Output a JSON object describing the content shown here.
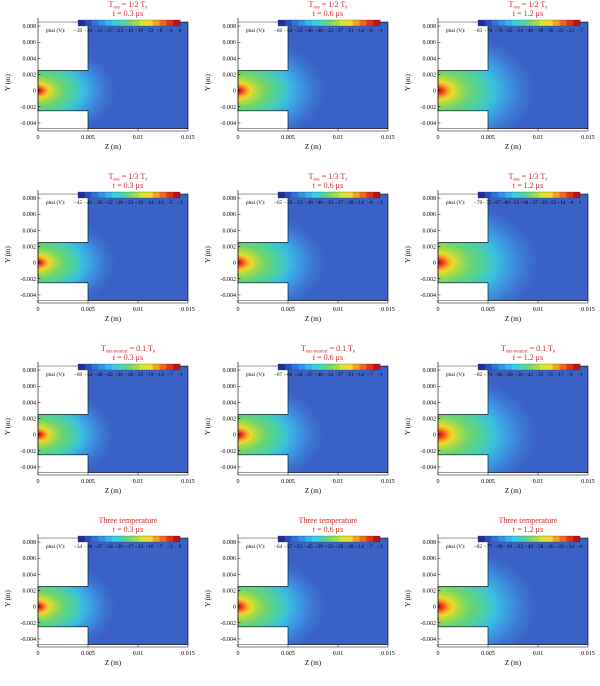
{
  "figure": {
    "x_tick_labels": [
      "0",
      "0.005",
      "0.01",
      "0.015"
    ],
    "y_tick_labels": [
      "0.008",
      "0.006",
      "0.004",
      "0.002",
      "0",
      "-0.002",
      "-0.004"
    ],
    "xlabel": "Z (m)",
    "ylabel": "Y (m)",
    "legend_label": "phai (V):",
    "colorbar_colors": [
      "#1d2f9c",
      "#2a4fc4",
      "#2e72dc",
      "#2f94ea",
      "#30b6f0",
      "#36cfe0",
      "#49d7b2",
      "#6fd67a",
      "#a3dc49",
      "#d4e530",
      "#f2d82a",
      "#f4a223",
      "#ec6a1e",
      "#de341b",
      "#b8141a"
    ],
    "domain_colors": {
      "background": "#3b62c6",
      "mid": "#41a9e3",
      "green": "#5fcf6a",
      "hot": "#e8241b"
    }
  },
  "chart_data": [
    {
      "type": "heatmap",
      "title": "T",
      "title_sub": "ees",
      "title_tail": " = 1/2 T",
      "title_sub2": "e",
      "time": "t = 0.3 μs",
      "colorbar_ticks": [
        "−39",
        "−35",
        "−31",
        "−27",
        "−23",
        "−19",
        "−16",
        "−12",
        "−8",
        "−4",
        "0"
      ],
      "field_extent": 0.0078
    },
    {
      "type": "heatmap",
      "title": "T",
      "title_sub": "ees",
      "title_tail": " = 1/2 T",
      "title_sub2": "e",
      "time": "t = 0.6 μs",
      "colorbar_ticks": [
        "−66",
        "−59",
        "−53",
        "−46",
        "−40",
        "−33",
        "−27",
        "−21",
        "−14",
        "−8",
        "−1"
      ],
      "field_extent": 0.0088
    },
    {
      "type": "heatmap",
      "title": "T",
      "title_sub": "ees",
      "title_tail": " = 1/2 T",
      "title_sub2": "e",
      "time": "t = 1.2 μs",
      "colorbar_ticks": [
        "−83",
        "−78",
        "−70",
        "−62",
        "−54",
        "−46",
        "−38",
        "−30",
        "−22",
        "−13",
        "−7"
      ],
      "field_extent": 0.0098
    },
    {
      "type": "heatmap",
      "title": "T",
      "title_sub": "ees",
      "title_tail": " = 1/3 T",
      "title_sub2": "e",
      "time": "t = 0.3 μs",
      "colorbar_ticks": [
        "−45",
        "−41",
        "−36",
        "−32",
        "−28",
        "−23",
        "−19",
        "−14",
        "−10",
        "−5",
        "−1"
      ],
      "field_extent": 0.0078
    },
    {
      "type": "heatmap",
      "title": "T",
      "title_sub": "ees",
      "title_tail": " = 1/3 T",
      "title_sub2": "e",
      "time": "t = 0.6 μs",
      "colorbar_ticks": [
        "−65",
        "−59",
        "−53",
        "−46",
        "−40",
        "−33",
        "−27",
        "−20",
        "−14",
        "−8",
        "−1"
      ],
      "field_extent": 0.0088
    },
    {
      "type": "heatmap",
      "title": "T",
      "title_sub": "ees",
      "title_tail": " = 1/3 T",
      "title_sub2": "e",
      "time": "t = 1.2 μs",
      "colorbar_ticks": [
        "−79",
        "−75",
        "−67",
        "−60",
        "−52",
        "−44",
        "−37",
        "−29",
        "−22",
        "−14",
        "−6",
        "1"
      ],
      "field_extent": 0.0102
    },
    {
      "type": "heatmap",
      "title": "T",
      "title_sub": "ees-neutral",
      "title_tail": " = 0.1 T",
      "title_sub2": "e",
      "time": "t = 0.3 μs",
      "colorbar_ticks": [
        "−60",
        "−54",
        "−48",
        "−42",
        "−36",
        "−30",
        "−25",
        "−19",
        "−13",
        "−7",
        "−1"
      ],
      "field_extent": 0.0076
    },
    {
      "type": "heatmap",
      "title": "T",
      "title_sub": "ees-neutral",
      "title_tail": " = 0.1 T",
      "title_sub2": "e",
      "time": "t = 0.6 μs",
      "colorbar_ticks": [
        "−67",
        "−60",
        "−54",
        "−47",
        "−40",
        "−34",
        "−27",
        "−21",
        "−14",
        "−7",
        "−1"
      ],
      "field_extent": 0.0086
    },
    {
      "type": "heatmap",
      "title": "T",
      "title_sub": "ees-neutral",
      "title_tail": " = 0.1 T",
      "title_sub2": "e",
      "time": "t = 1.2 μs",
      "colorbar_ticks": [
        "−82",
        "−74",
        "−66",
        "−58",
        "−50",
        "−42",
        "−33",
        "−25",
        "−17",
        "−9",
        "−1"
      ],
      "field_extent": 0.01
    },
    {
      "type": "heatmap",
      "title": "Three temperature",
      "title_sub": "",
      "title_tail": "",
      "title_sub2": "",
      "time": "t = 0.3 μs",
      "colorbar_ticks": [
        "−34",
        "−30",
        "−27",
        "−24",
        "−20",
        "−17",
        "−13",
        "−10",
        "−7",
        "−3",
        "0"
      ],
      "field_extent": 0.0078
    },
    {
      "type": "heatmap",
      "title": "Three temperature",
      "title_sub": "",
      "title_tail": "",
      "title_sub2": "",
      "time": "t = 0.6 μs",
      "colorbar_ticks": [
        "−64",
        "−57",
        "−51",
        "−45",
        "−39",
        "−32",
        "−26",
        "−20",
        "−14",
        "−7",
        "−1"
      ],
      "field_extent": 0.0088
    },
    {
      "type": "heatmap",
      "title": "Three temperature",
      "title_sub": "",
      "title_tail": "",
      "title_sub2": "",
      "time": "t = 1.2 μs",
      "colorbar_ticks": [
        "−82",
        "−77",
        "−69",
        "−61",
        "−53",
        "−46",
        "−38",
        "−30",
        "−22",
        "−14",
        "−6"
      ],
      "field_extent": 0.01
    }
  ]
}
